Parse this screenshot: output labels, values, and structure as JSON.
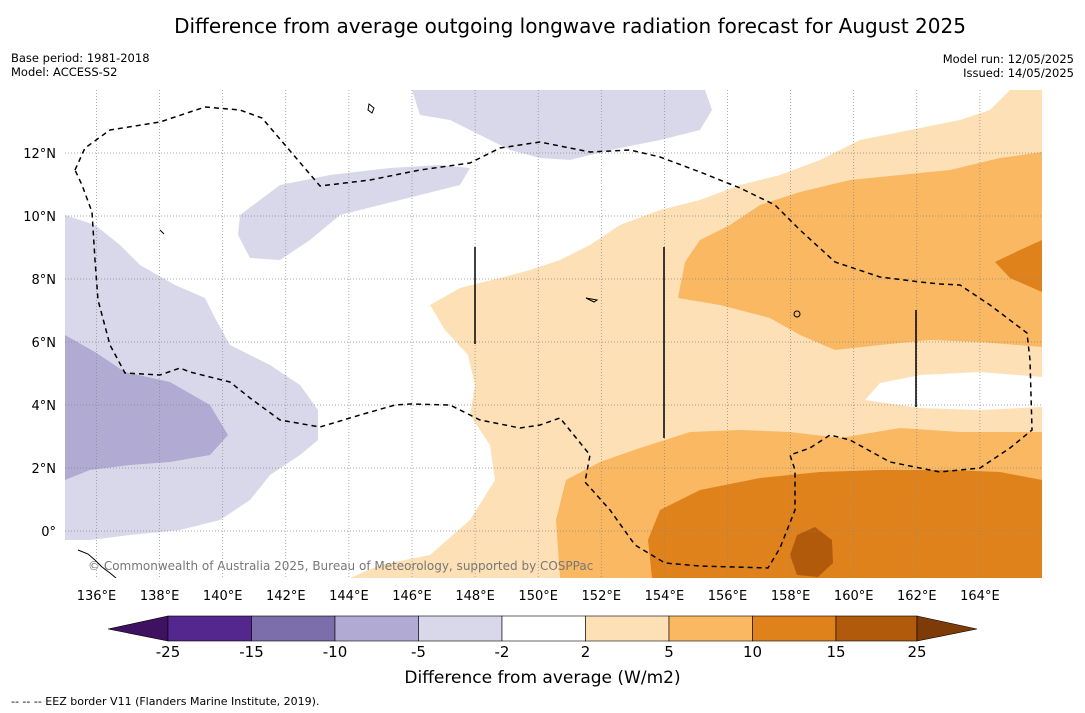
{
  "title": "Difference from average outgoing longwave radiation forecast for August 2025",
  "base_period": "Base period: 1981-2018",
  "model": "Model: ACCESS-S2",
  "model_run": "Model run: 12/05/2025",
  "issued": "Issued: 14/05/2025",
  "copyright": "© Commonwealth of Australia 2025, Bureau of Meteorology, supported by COSPPac",
  "x_ticks": [
    "136°E",
    "138°E",
    "140°E",
    "142°E",
    "144°E",
    "146°E",
    "148°E",
    "150°E",
    "152°E",
    "154°E",
    "156°E",
    "158°E",
    "160°E",
    "162°E",
    "164°E"
  ],
  "y_ticks": [
    "12°N",
    "10°N",
    "8°N",
    "6°N",
    "4°N",
    "2°N",
    "0°"
  ],
  "colorbar": {
    "title": "Difference from average (W/m2)",
    "labels": [
      "-25",
      "-15",
      "-10",
      "-5",
      "-2",
      "2",
      "5",
      "10",
      "15",
      "25"
    ],
    "colors": [
      "#3e1260",
      "#54278f",
      "#7c6dab",
      "#b1aad2",
      "#d8d8ea",
      "#ffffff",
      "#fde0b6",
      "#fab862",
      "#e0821c",
      "#b25a0c",
      "#7e3b08"
    ]
  },
  "footnote": "--  --  -- EEZ border V11 (Flanders Marine Institute, 2019)."
}
